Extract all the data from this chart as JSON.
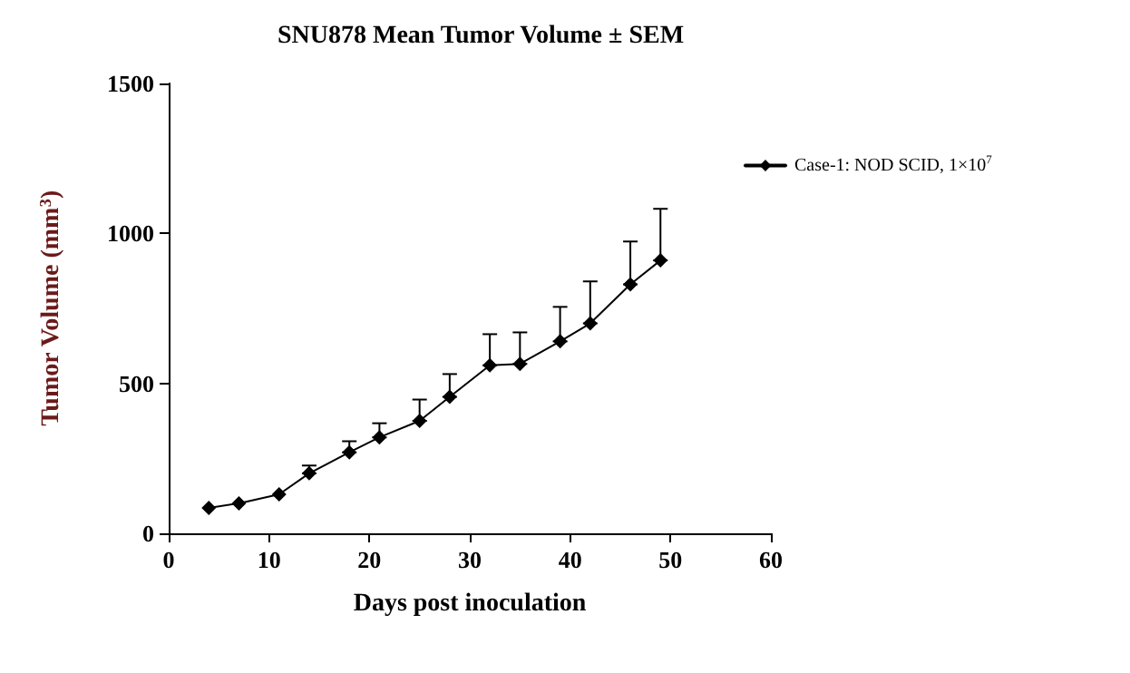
{
  "chart_data": {
    "type": "line",
    "title": "SNU878 Mean Tumor Volume ± SEM",
    "xlabel": "Days post inoculation",
    "ylabel": "Tumor Volume (mm$^{3}$)",
    "x": [
      4,
      7,
      11,
      14,
      18,
      21,
      25,
      28,
      32,
      35,
      39,
      42,
      46,
      49
    ],
    "series": [
      {
        "name": "Case-1: NOD SCID, 1×10$^{7}$",
        "color": "#000000",
        "values": [
          85,
          100,
          130,
          200,
          270,
          320,
          375,
          455,
          560,
          565,
          640,
          700,
          830,
          910
        ],
        "errors": [
          null,
          null,
          null,
          [
            200,
            226
          ],
          [
            270,
            307
          ],
          [
            320,
            367
          ],
          [
            375,
            446
          ],
          [
            455,
            531
          ],
          [
            560,
            664
          ],
          [
            565,
            670
          ],
          [
            640,
            755
          ],
          [
            700,
            840
          ],
          [
            830,
            973
          ],
          [
            910,
            1082
          ]
        ]
      }
    ],
    "xlim": [
      0,
      60
    ],
    "xticks": [
      0,
      10,
      20,
      30,
      40,
      50,
      60
    ],
    "ylim": [
      0,
      1500
    ],
    "yticks": [
      0,
      500,
      1000,
      1500
    ],
    "marker": "diamond",
    "line_style": "solid",
    "grid": false,
    "legend": "right"
  }
}
